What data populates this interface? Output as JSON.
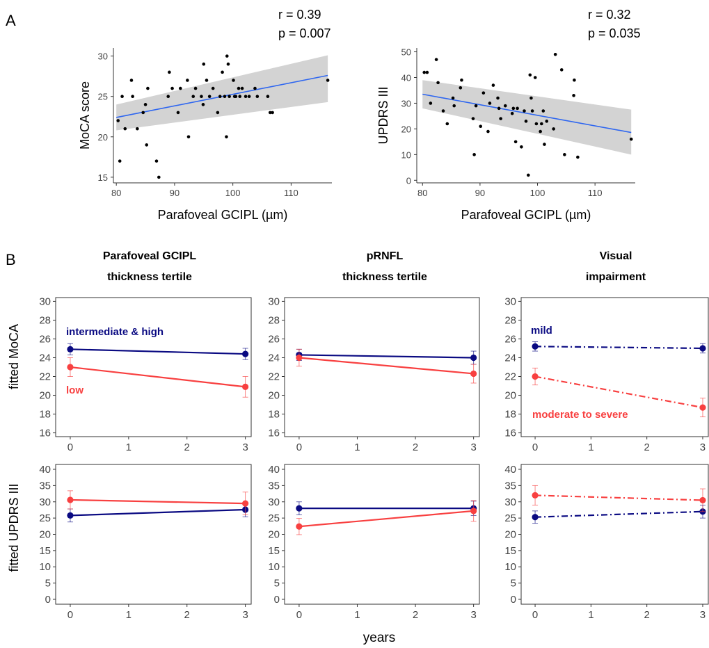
{
  "panel_labels": {
    "a": "A",
    "b": "B"
  },
  "colors": {
    "navy": "#0a0a82",
    "red": "#f84040",
    "fit_line": "#2e66f0",
    "ci_band": "#d3d3d3",
    "point": "#000000",
    "axis": "#333333"
  },
  "chart_data": [
    {
      "type": "scatter",
      "panel": "A",
      "xlabel": "Parafoveal GCIPL (µm)",
      "ylabel": "MoCA score",
      "stats": [
        "r = 0.39",
        "p = 0.007"
      ],
      "xlim": [
        79.5,
        117
      ],
      "ylim": [
        14.3,
        31
      ],
      "xticks": [
        80,
        90,
        100,
        110
      ],
      "yticks": [
        15,
        20,
        25,
        30
      ],
      "grid": false,
      "points": [
        [
          80.3,
          22
        ],
        [
          80.6,
          17
        ],
        [
          81,
          25
        ],
        [
          81.5,
          21
        ],
        [
          82.6,
          27
        ],
        [
          82.8,
          25
        ],
        [
          83.6,
          21
        ],
        [
          84.6,
          23
        ],
        [
          85,
          24
        ],
        [
          85.2,
          19
        ],
        [
          85.4,
          26
        ],
        [
          86.9,
          17
        ],
        [
          87.3,
          15
        ],
        [
          88.9,
          25
        ],
        [
          89.1,
          28
        ],
        [
          89.6,
          26
        ],
        [
          90.6,
          23
        ],
        [
          91,
          26
        ],
        [
          92.2,
          27
        ],
        [
          92.4,
          20
        ],
        [
          93.2,
          25
        ],
        [
          93.6,
          26
        ],
        [
          94.6,
          25
        ],
        [
          94.9,
          24
        ],
        [
          95,
          29
        ],
        [
          95.5,
          27
        ],
        [
          96,
          25
        ],
        [
          96.6,
          26
        ],
        [
          97.4,
          23
        ],
        [
          97.8,
          25
        ],
        [
          98.2,
          28
        ],
        [
          98.6,
          25
        ],
        [
          98.9,
          20
        ],
        [
          99,
          30
        ],
        [
          99.2,
          29
        ],
        [
          99.4,
          25
        ],
        [
          100.1,
          27
        ],
        [
          100.3,
          25
        ],
        [
          100.5,
          25
        ],
        [
          101,
          26
        ],
        [
          101.2,
          25
        ],
        [
          101.6,
          26
        ],
        [
          102.2,
          25
        ],
        [
          102.8,
          25
        ],
        [
          103.8,
          26
        ],
        [
          104.2,
          25
        ],
        [
          106,
          25
        ],
        [
          106.4,
          23
        ],
        [
          106.8,
          23
        ],
        [
          116.3,
          27
        ]
      ],
      "fit": {
        "x": [
          80,
          116.3
        ],
        "y": [
          22.4,
          27.6
        ],
        "ci_lower": [
          20.8,
          24.3
        ],
        "ci_upper": [
          24.0,
          30.1
        ]
      }
    },
    {
      "type": "scatter",
      "panel": "A",
      "xlabel": "Parafoveal GCIPL (µm)",
      "ylabel": "UPDRS III",
      "stats": [
        "r = 0.32",
        "p = 0.035"
      ],
      "xlim": [
        79,
        117
      ],
      "ylim": [
        -1,
        51.5
      ],
      "xticks": [
        80,
        90,
        100,
        110
      ],
      "yticks": [
        0,
        10,
        20,
        30,
        40,
        50
      ],
      "grid": false,
      "points": [
        [
          80.3,
          42
        ],
        [
          80.8,
          42
        ],
        [
          81.4,
          30
        ],
        [
          82.4,
          47
        ],
        [
          82.7,
          38
        ],
        [
          83.6,
          27
        ],
        [
          84.3,
          22
        ],
        [
          85.3,
          32
        ],
        [
          85.5,
          29
        ],
        [
          86.6,
          36
        ],
        [
          86.8,
          39
        ],
        [
          88.8,
          24
        ],
        [
          89,
          10
        ],
        [
          89.3,
          29
        ],
        [
          90.1,
          21
        ],
        [
          90.6,
          34
        ],
        [
          91.4,
          19
        ],
        [
          91.7,
          30
        ],
        [
          92.3,
          37
        ],
        [
          93.1,
          32
        ],
        [
          93.3,
          28
        ],
        [
          93.6,
          24
        ],
        [
          94.4,
          29
        ],
        [
          95.6,
          26
        ],
        [
          95.8,
          28
        ],
        [
          96.2,
          15
        ],
        [
          96.5,
          28
        ],
        [
          97.2,
          13
        ],
        [
          97.7,
          27
        ],
        [
          98,
          23
        ],
        [
          98.4,
          2
        ],
        [
          98.7,
          41
        ],
        [
          98.9,
          32
        ],
        [
          99.1,
          27
        ],
        [
          99.6,
          40
        ],
        [
          99.8,
          22
        ],
        [
          100.5,
          19
        ],
        [
          100.7,
          22
        ],
        [
          101,
          27
        ],
        [
          101.2,
          14
        ],
        [
          101.6,
          23
        ],
        [
          102.8,
          20
        ],
        [
          103.1,
          49
        ],
        [
          104.2,
          43
        ],
        [
          104.7,
          10
        ],
        [
          106.3,
          33
        ],
        [
          106.4,
          39
        ],
        [
          107,
          9
        ],
        [
          116.3,
          16
        ]
      ],
      "fit": {
        "x": [
          80,
          116.3
        ],
        "y": [
          33.5,
          18.6
        ],
        "ci_lower": [
          28.0,
          10.0
        ],
        "ci_upper": [
          39.0,
          27.5
        ]
      }
    },
    {
      "type": "line",
      "panel": "B",
      "title": "Parafoveal GCIPL thickness tertile",
      "title_lines": [
        "Parafoveal GCIPL",
        "thickness tertile"
      ],
      "ylabel": "fitted MoCA",
      "xlim": [
        -0.25,
        3.1
      ],
      "ylim": [
        15.6,
        30.4
      ],
      "xticks": [
        0,
        1,
        2,
        3
      ],
      "yticks": [
        16,
        18,
        20,
        22,
        24,
        26,
        28,
        30
      ],
      "dashed": false,
      "series": [
        {
          "name": "intermediate & high",
          "color": "navy",
          "x": [
            0,
            3
          ],
          "y": [
            24.9,
            24.4
          ],
          "err": [
            0.6,
            0.6
          ]
        },
        {
          "name": "low",
          "color": "red",
          "x": [
            0,
            3
          ],
          "y": [
            23.0,
            20.9
          ],
          "err": [
            1.0,
            1.1
          ]
        }
      ]
    },
    {
      "type": "line",
      "panel": "B",
      "title": "pRNFL thickness tertile",
      "title_lines": [
        "pRNFL",
        "thickness tertile"
      ],
      "ylabel": "",
      "xlim": [
        -0.25,
        3.1
      ],
      "ylim": [
        15.6,
        30.4
      ],
      "xticks": [
        0,
        1,
        2,
        3
      ],
      "yticks": [
        16,
        18,
        20,
        22,
        24,
        26,
        28,
        30
      ],
      "dashed": false,
      "series": [
        {
          "name": "",
          "color": "navy",
          "x": [
            0,
            3
          ],
          "y": [
            24.3,
            24.0
          ],
          "err": [
            0.6,
            0.7
          ]
        },
        {
          "name": "",
          "color": "red",
          "x": [
            0,
            3
          ],
          "y": [
            24.0,
            22.3
          ],
          "err": [
            0.9,
            1.0
          ]
        }
      ]
    },
    {
      "type": "line",
      "panel": "B",
      "title": "Visual impairment",
      "title_lines": [
        "Visual",
        "impairment"
      ],
      "ylabel": "",
      "xlim": [
        -0.25,
        3.1
      ],
      "ylim": [
        15.6,
        30.4
      ],
      "xticks": [
        0,
        1,
        2,
        3
      ],
      "yticks": [
        16,
        18,
        20,
        22,
        24,
        26,
        28,
        30
      ],
      "dashed": true,
      "series": [
        {
          "name": "mild",
          "color": "navy",
          "x": [
            0,
            3
          ],
          "y": [
            25.2,
            25.0
          ],
          "err": [
            0.5,
            0.5
          ]
        },
        {
          "name": "moderate to severe",
          "color": "red",
          "x": [
            0,
            3
          ],
          "y": [
            22.0,
            18.7
          ],
          "err": [
            0.9,
            1.0
          ]
        }
      ]
    },
    {
      "type": "line",
      "panel": "B",
      "ylabel": "fitted UPDRS III",
      "xlim": [
        -0.25,
        3.1
      ],
      "ylim": [
        -1.5,
        41.5
      ],
      "xticks": [
        0,
        1,
        2,
        3
      ],
      "yticks": [
        0,
        5,
        10,
        15,
        20,
        25,
        30,
        35,
        40
      ],
      "dashed": false,
      "series": [
        {
          "name": "",
          "color": "navy",
          "x": [
            0,
            3
          ],
          "y": [
            25.8,
            27.6
          ],
          "err": [
            2.0,
            2.2
          ]
        },
        {
          "name": "",
          "color": "red",
          "x": [
            0,
            3
          ],
          "y": [
            30.6,
            29.5
          ],
          "err": [
            2.8,
            3.5
          ]
        }
      ]
    },
    {
      "type": "line",
      "panel": "B",
      "ylabel": "",
      "xlim": [
        -0.25,
        3.1
      ],
      "ylim": [
        -1.5,
        41.5
      ],
      "xticks": [
        0,
        1,
        2,
        3
      ],
      "yticks": [
        0,
        5,
        10,
        15,
        20,
        25,
        30,
        35,
        40
      ],
      "dashed": false,
      "series": [
        {
          "name": "",
          "color": "navy",
          "x": [
            0,
            3
          ],
          "y": [
            28.0,
            28.0
          ],
          "err": [
            2.0,
            2.2
          ]
        },
        {
          "name": "",
          "color": "red",
          "x": [
            0,
            3
          ],
          "y": [
            22.4,
            27.2
          ],
          "err": [
            2.5,
            3.2
          ]
        }
      ]
    },
    {
      "type": "line",
      "panel": "B",
      "ylabel": "",
      "xlim": [
        -0.25,
        3.1
      ],
      "ylim": [
        -1.5,
        41.5
      ],
      "xticks": [
        0,
        1,
        2,
        3
      ],
      "yticks": [
        0,
        5,
        10,
        15,
        20,
        25,
        30,
        35,
        40
      ],
      "dashed": true,
      "series": [
        {
          "name": "",
          "color": "navy",
          "x": [
            0,
            3
          ],
          "y": [
            25.3,
            27.0
          ],
          "err": [
            1.9,
            2.0
          ]
        },
        {
          "name": "",
          "color": "red",
          "x": [
            0,
            3
          ],
          "y": [
            32.0,
            30.5
          ],
          "err": [
            3.0,
            3.5
          ]
        }
      ]
    }
  ],
  "shared_xlabel": "years"
}
